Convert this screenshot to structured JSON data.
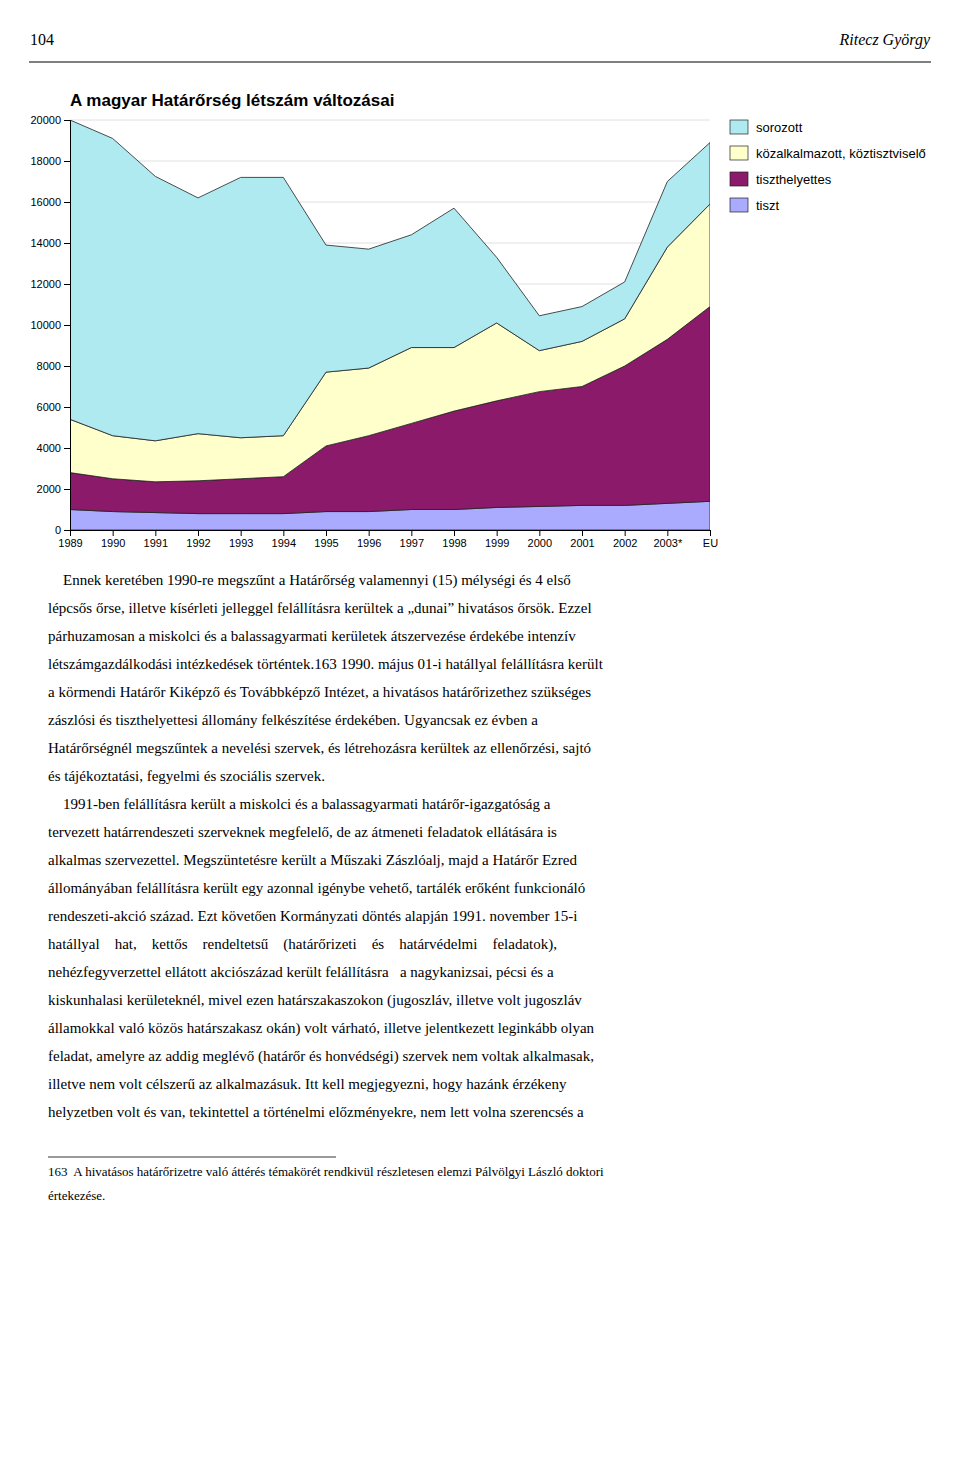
{
  "header_left": "104",
  "header_right": "Ritecz György",
  "chart_data": {
    "type": "area",
    "stacked": true,
    "title": "A magyar Határőrség létszám változásai",
    "categories": [
      "1989",
      "1990",
      "1991",
      "1992",
      "1993",
      "1994",
      "1995",
      "1996",
      "1997",
      "1998",
      "1999",
      "2000",
      "2001",
      "2002",
      "2003*",
      "EU"
    ],
    "series": [
      {
        "name": "sorozott",
        "color": "#aeeaf0",
        "values": [
          14600,
          14500,
          12900,
          11500,
          12700,
          12600,
          6200,
          5800,
          5500,
          6800,
          3200,
          1700,
          1700,
          1800,
          3200,
          3000
        ]
      },
      {
        "name": "közalkalmazott, köztisztviselő",
        "color": "#ffffcc",
        "values": [
          2600,
          2100,
          2000,
          2300,
          2000,
          2000,
          3600,
          3300,
          3700,
          3100,
          3800,
          2000,
          2200,
          2300,
          4500,
          5000
        ]
      },
      {
        "name": "tiszthelyettes",
        "color": "#8b1a6b",
        "values": [
          1800,
          1600,
          1500,
          1600,
          1700,
          1800,
          3200,
          3700,
          4200,
          4800,
          5200,
          5600,
          5800,
          6800,
          8000,
          9500
        ]
      },
      {
        "name": "tiszt",
        "color": "#aaaaff",
        "values": [
          1000,
          900,
          850,
          800,
          800,
          800,
          900,
          900,
          1000,
          1000,
          1100,
          1150,
          1200,
          1200,
          1300,
          1400
        ]
      }
    ],
    "ylim": [
      0,
      20000
    ],
    "yticks": [
      0,
      2000,
      4000,
      6000,
      8000,
      10000,
      12000,
      14000,
      16000,
      18000,
      20000
    ],
    "grid": true,
    "legend": "upper right"
  },
  "body_lines": [
    "    Ennek keretében 1990-re megszűnt a Határőrség valamennyi (15) mélységi és 4 első",
    "lépcsős őrse, illetve kísérleti jelleggel felállításra kerültek a „dunai” hivatásos őrsök. Ezzel",
    "párhuzamosan a miskolci és a balassagyarmati kerületek átszervezése érdekébe intenzív",
    "létszámgazdálkodási intézkedések történtek.163 1990. május 01-i hatállyal felállításra került",
    "a körmendi Határőr Kiképző és Továbbképző Intézet, a hivatásos határőrizethez szükséges",
    "zászlósi és tiszthelyettesi állomány felkészítése érdekében. Ugyancsak ez évben a",
    "Határőrségnél megszűntek a nevelési szervek, és létrehozásra kerültek az ellenőrzési, sajtó",
    "és tájékoztatási, fegyelmi és szociális szervek.",
    "    1991-ben felállításra került a miskolci és a balassagyarmati határőr-igazgatóság a",
    "tervezett határrendeszeti szerveknek megfelelő, de az átmeneti feladatok ellátására is",
    "alkalmas szervezettel. Megszüntetésre került a Műszaki Zászlóalj, majd a Határőr Ezred",
    "állományában felállításra került egy azonnal igénybe vehető, tartálék erőként funkcionáló",
    "rendeszeti-akció század. Ezt követően Kormányzati döntés alapján 1991. november 15-i",
    "hatállyal    hat,    kettős    rendeltetsű    (határőrizeti    és    határvédelmi    feladatok),",
    "nehézfegyverzettel ellátott akciószázad került felállításra   a nagykanizsai, pécsi és a",
    "kiskunhalasi kerületeknél, mivel ezen határszakaszokon (jugoszláv, illetve volt jugoszláv",
    "államokkal való közös határszakasz okán) volt várható, illetve jelentkezett leginkább olyan",
    "feladat, amelyre az addig meglévő (határőr és honvédségi) szervek nem voltak alkalmasak,",
    "illetve nem volt célszerű az alkalmazásuk. Itt kell megjegyezni, hogy hazánk érzékeny",
    "helyzetben volt és van, tekintettel a történelmi előzményekre, nem lett volna szerencsés a"
  ],
  "footnote_lines": [
    "163  A hivatásos határőrizetre való áttérés témakörét rendkivül részletesen elemzi Pálvölgyi László doktori",
    "értekezése."
  ]
}
